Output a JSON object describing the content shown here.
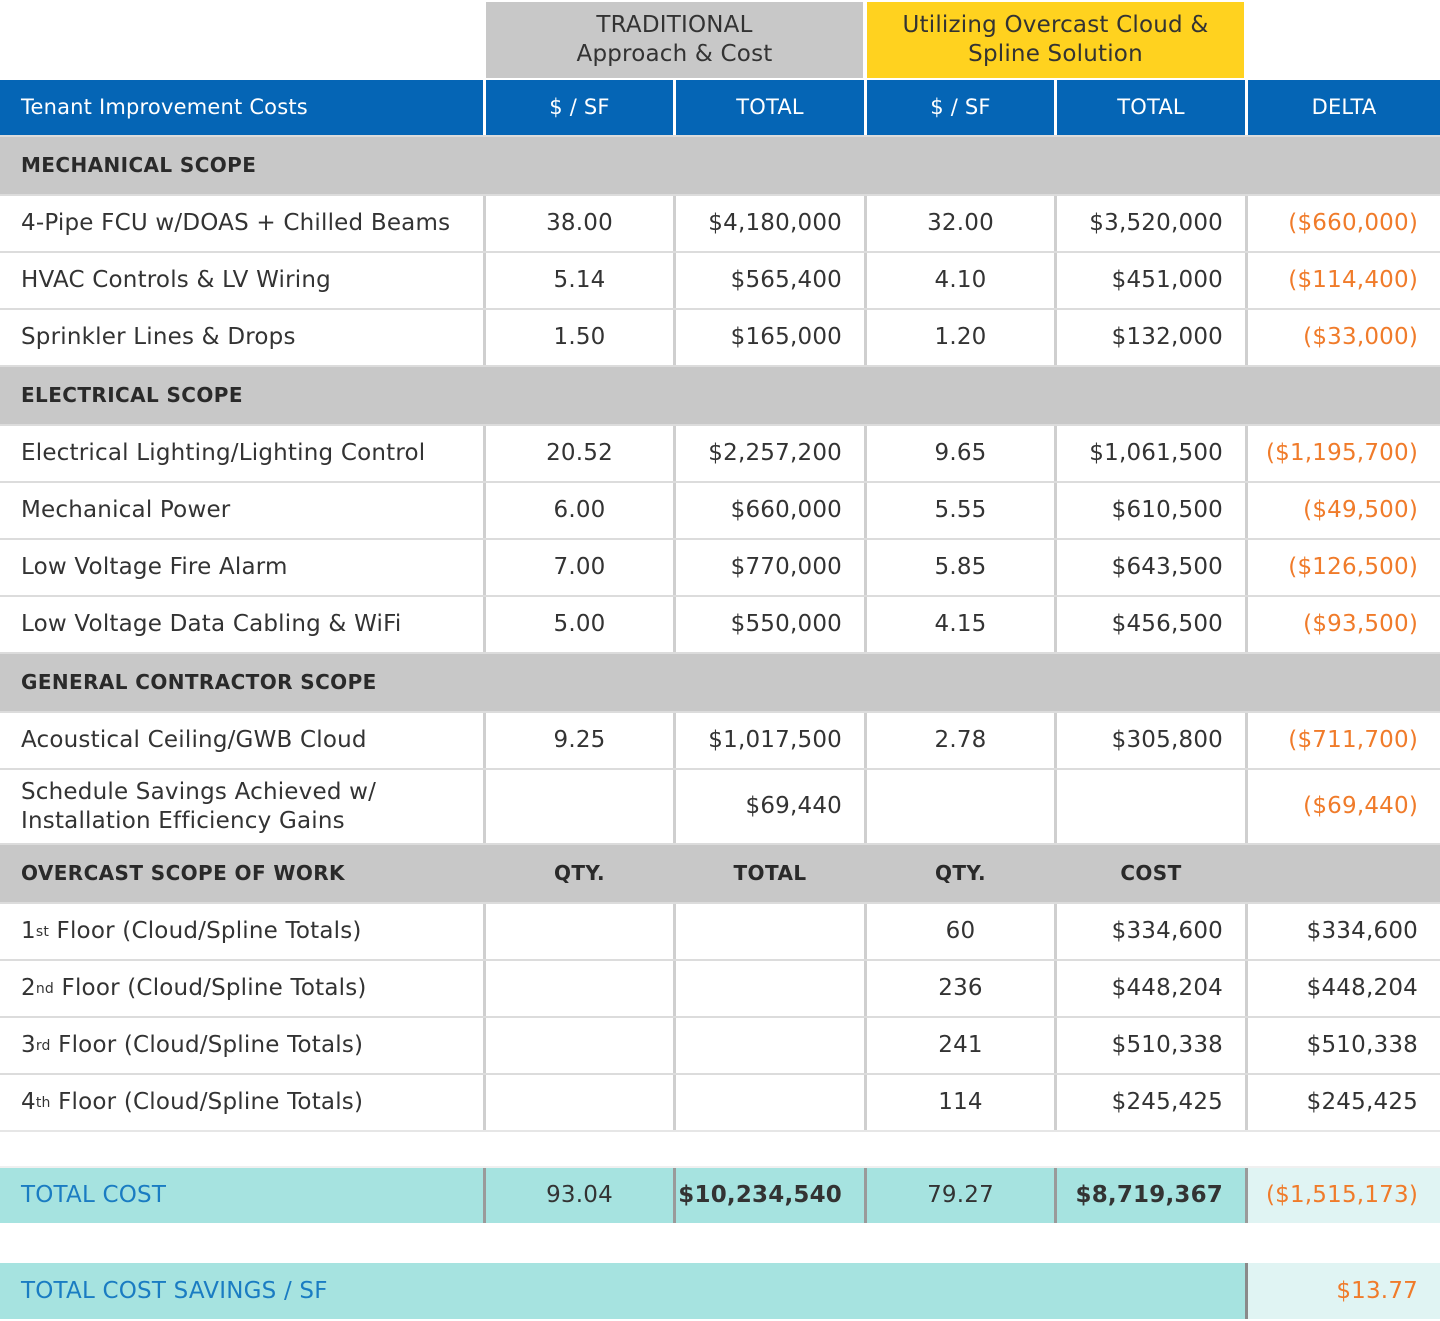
{
  "group_headers": [
    [
      "TRADITIONAL",
      "Approach & Cost"
    ],
    [
      "Utilizing Overcast Cloud &",
      "Spline Solution"
    ]
  ],
  "column_headers": [
    "Tenant Improvement Costs",
    "$ / SF",
    "TOTAL",
    "$ / SF",
    "TOTAL",
    "DELTA"
  ],
  "sections": [
    {
      "title": "MECHANICAL SCOPE",
      "rows": [
        [
          "4-Pipe FCU w/DOAS + Chilled Beams",
          "38.00",
          "$4,180,000",
          "32.00",
          "$3,520,000",
          "($660,000)"
        ],
        [
          "HVAC Controls & LV Wiring",
          "5.14",
          "$565,400",
          "4.10",
          "$451,000",
          "($114,400)"
        ],
        [
          "Sprinkler Lines & Drops",
          "1.50",
          "$165,000",
          "1.20",
          "$132,000",
          "($33,000)"
        ]
      ]
    },
    {
      "title": "ELECTRICAL SCOPE",
      "rows": [
        [
          "Electrical Lighting/Lighting Control",
          "20.52",
          "$2,257,200",
          "9.65",
          "$1,061,500",
          "($1,195,700)"
        ],
        [
          "Mechanical Power",
          "6.00",
          "$660,000",
          "5.55",
          "$610,500",
          "($49,500)"
        ],
        [
          "Low Voltage Fire Alarm",
          "7.00",
          "$770,000",
          "5.85",
          "$643,500",
          "($126,500)"
        ],
        [
          "Low Voltage Data Cabling & WiFi",
          "5.00",
          "$550,000",
          "4.15",
          "$456,500",
          "($93,500)"
        ]
      ]
    },
    {
      "title": "GENERAL CONTRACTOR SCOPE",
      "rows": [
        [
          "Acoustical Ceiling/GWB Cloud",
          "9.25",
          "$1,017,500",
          "2.78",
          "$305,800",
          "($711,700)"
        ],
        [
          [
            "Schedule Savings Achieved w/",
            "Installation Efficiency Gains"
          ],
          null,
          "$69,440",
          null,
          null,
          "($69,440)"
        ]
      ]
    },
    {
      "title": [
        "OVERCAST SCOPE OF WORK",
        "QTY.",
        "TOTAL",
        "QTY.",
        "COST"
      ],
      "rows": [
        [
          {
            "ordinal": "1",
            "suffix": "st",
            "text": " Floor (Cloud/Spline Totals)"
          },
          null,
          null,
          "60",
          "$334,600",
          "$334,600"
        ],
        [
          {
            "ordinal": "2",
            "suffix": "nd",
            "text": " Floor (Cloud/Spline Totals)"
          },
          null,
          null,
          "236",
          "$448,204",
          "$448,204"
        ],
        [
          {
            "ordinal": "3",
            "suffix": "rd",
            "text": " Floor (Cloud/Spline Totals)"
          },
          null,
          null,
          "241",
          "$510,338",
          "$510,338"
        ],
        [
          {
            "ordinal": "4",
            "suffix": "th",
            "text": " Floor (Cloud/Spline Totals)"
          },
          null,
          null,
          "114",
          "$245,425",
          "$245,425"
        ]
      ]
    }
  ],
  "total_row": [
    "TOTAL COST",
    "93.04",
    "$10,234,540",
    "79.27",
    "$8,719,367",
    "($1,515,173)"
  ],
  "savings_row": [
    "TOTAL COST SAVINGS / SF",
    "$13.77"
  ]
}
